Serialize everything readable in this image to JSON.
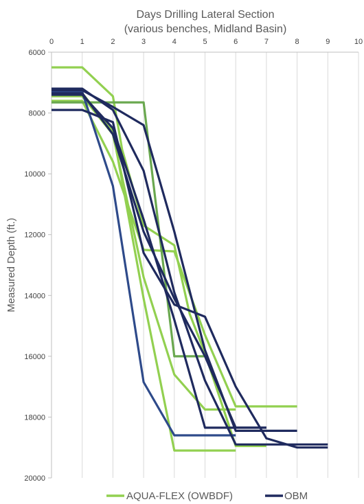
{
  "chart_data": {
    "type": "line",
    "title": "Days Drilling Lateral Section",
    "subtitle": "(various benches, Midland Basin)",
    "xlabel": "",
    "ylabel": "Measured Depth (ft.)",
    "xlim": [
      0,
      10
    ],
    "ylim": [
      6000,
      20000
    ],
    "y_inverted": true,
    "x_axis_position": "top",
    "x_ticks": [
      "0",
      "1",
      "2",
      "3",
      "4",
      "5",
      "6",
      "7",
      "8",
      "9",
      "10"
    ],
    "y_ticks": [
      "6000",
      "8000",
      "10000",
      "12000",
      "14000",
      "16000",
      "18000",
      "20000"
    ],
    "grid": "vertical",
    "legend": {
      "position": "bottom",
      "entries": [
        {
          "name": "AQUA-FLEX (OWBDF)",
          "color": "#92d050"
        },
        {
          "name": "OBM",
          "color": "#1f2a5e"
        }
      ]
    },
    "series": [
      {
        "group": "AQUA-FLEX (OWBDF)",
        "color": "#92d050",
        "points": [
          [
            0,
            6500
          ],
          [
            1,
            6500
          ],
          [
            2,
            7450
          ],
          [
            2.3,
            9200
          ],
          [
            3,
            11700
          ],
          [
            4,
            12350
          ],
          [
            4.5,
            14600
          ],
          [
            5,
            15900
          ],
          [
            6,
            18950
          ],
          [
            7,
            18950
          ]
        ]
      },
      {
        "group": "AQUA-FLEX (OWBDF)",
        "color": "#92d050",
        "points": [
          [
            0,
            7600
          ],
          [
            1,
            7600
          ],
          [
            2,
            9600
          ],
          [
            3,
            12500
          ],
          [
            4,
            12550
          ],
          [
            5,
            15300
          ],
          [
            6,
            17650
          ],
          [
            8,
            17650
          ]
        ]
      },
      {
        "group": "AQUA-FLEX (OWBDF)",
        "color": "#92d050",
        "points": [
          [
            0,
            7450
          ],
          [
            1,
            7450
          ],
          [
            2,
            8700
          ],
          [
            3,
            13400
          ],
          [
            4,
            16600
          ],
          [
            5,
            17750
          ],
          [
            6,
            17750
          ]
        ]
      },
      {
        "group": "AQUA-FLEX (OWBDF)",
        "color": "#92d050",
        "points": [
          [
            0,
            7350
          ],
          [
            1,
            7350
          ],
          [
            2,
            8600
          ],
          [
            3,
            14100
          ],
          [
            4,
            19100
          ],
          [
            6,
            19100
          ]
        ]
      },
      {
        "group": "AQUA-FLEX (OWBDF)",
        "color": "#6aa84f",
        "points": [
          [
            0,
            7650
          ],
          [
            1,
            7650
          ],
          [
            2,
            7650
          ],
          [
            3,
            7650
          ],
          [
            4,
            16000
          ],
          [
            5,
            16000
          ]
        ]
      },
      {
        "group": "OBM",
        "color": "#2e4a8a",
        "points": [
          [
            0,
            7300
          ],
          [
            1,
            7300
          ],
          [
            2,
            10400
          ],
          [
            3,
            16850
          ],
          [
            4,
            18600
          ],
          [
            6,
            18600
          ]
        ]
      },
      {
        "group": "OBM",
        "color": "#1f2a5e",
        "points": [
          [
            0,
            7900
          ],
          [
            1,
            7900
          ],
          [
            2,
            8300
          ],
          [
            3,
            12600
          ],
          [
            4,
            14300
          ],
          [
            5,
            14700
          ],
          [
            6,
            17000
          ],
          [
            7,
            18700
          ],
          [
            8,
            19000
          ],
          [
            9,
            19000
          ]
        ]
      },
      {
        "group": "OBM",
        "color": "#1f2a5e",
        "points": [
          [
            0,
            7200
          ],
          [
            1,
            7200
          ],
          [
            2,
            7900
          ],
          [
            3,
            9900
          ],
          [
            4,
            13900
          ],
          [
            5,
            16800
          ],
          [
            6,
            18900
          ],
          [
            9,
            18900
          ]
        ]
      },
      {
        "group": "OBM",
        "color": "#1f2a5e",
        "points": [
          [
            0,
            7250
          ],
          [
            1,
            7250
          ],
          [
            2,
            7800
          ],
          [
            3,
            8400
          ],
          [
            4,
            11900
          ],
          [
            5,
            15800
          ],
          [
            6,
            18450
          ],
          [
            8,
            18450
          ]
        ]
      },
      {
        "group": "OBM",
        "color": "#1f2a5e",
        "points": [
          [
            0,
            7350
          ],
          [
            1,
            7350
          ],
          [
            2,
            8700
          ],
          [
            3,
            11900
          ],
          [
            4,
            14100
          ],
          [
            5,
            16000
          ],
          [
            6,
            18350
          ],
          [
            7,
            18350
          ]
        ]
      },
      {
        "group": "OBM",
        "color": "#1f2a5e",
        "points": [
          [
            0,
            7400
          ],
          [
            1,
            7400
          ],
          [
            2,
            8500
          ],
          [
            3,
            11500
          ],
          [
            4,
            14800
          ],
          [
            5,
            18350
          ],
          [
            6,
            18350
          ],
          [
            7,
            18350
          ]
        ]
      }
    ]
  }
}
